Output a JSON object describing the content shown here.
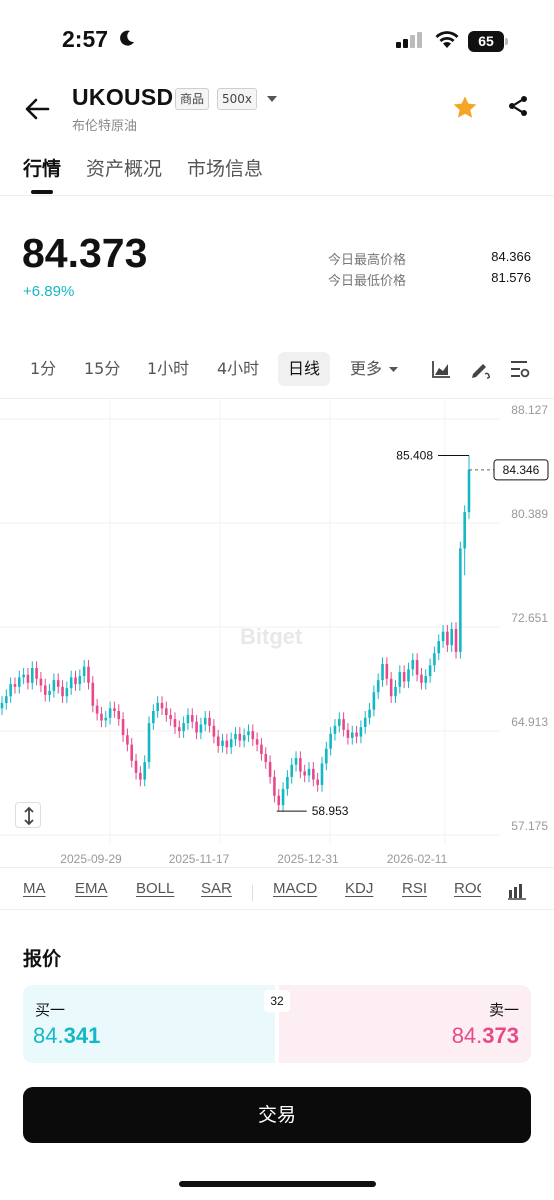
{
  "status_bar": {
    "time": "2:57",
    "battery": "65"
  },
  "header": {
    "symbol": "UKOUSD",
    "tags": [
      "商品",
      "500x"
    ],
    "subtitle": "布伦特原油"
  },
  "tabs": [
    {
      "label": "行情",
      "active": true
    },
    {
      "label": "资产概况",
      "active": false
    },
    {
      "label": "市场信息",
      "active": false
    }
  ],
  "price": {
    "last": "84.373",
    "change": "+6.89%",
    "high_label": "今日最高价格",
    "high_value": "84.366",
    "low_label": "今日最低价格",
    "low_value": "81.576"
  },
  "intervals": [
    {
      "label": "1分",
      "active": false
    },
    {
      "label": "15分",
      "active": false
    },
    {
      "label": "1小时",
      "active": false
    },
    {
      "label": "4小时",
      "active": false
    },
    {
      "label": "日线",
      "active": true
    },
    {
      "label": "更多",
      "active": false
    }
  ],
  "chart_data": {
    "type": "candlestick",
    "y_ticks": [
      "88.127",
      "80.389",
      "72.651",
      "64.913",
      "57.175"
    ],
    "ylim": [
      57.175,
      88.127
    ],
    "x_ticks": [
      "2025-09-29",
      "2025-11-17",
      "2025-12-31",
      "2026-02-11"
    ],
    "current_price_label": "84.346",
    "max_label": "85.408",
    "min_label": "58.953",
    "watermark": "Bitget",
    "colors": {
      "up": "#14b8c4",
      "down": "#e64a8a"
    },
    "series_close": [
      67.0,
      67.5,
      68.4,
      68.2,
      68.9,
      69.1,
      68.5,
      69.6,
      68.8,
      68.3,
      67.6,
      67.9,
      68.7,
      68.2,
      67.5,
      68.1,
      68.9,
      68.4,
      69.0,
      69.7,
      68.5,
      66.8,
      66.2,
      65.7,
      65.9,
      66.6,
      66.4,
      65.8,
      64.6,
      63.9,
      62.7,
      61.8,
      61.3,
      62.6,
      65.5,
      66.4,
      67.0,
      66.6,
      66.1,
      65.8,
      65.2,
      64.9,
      65.5,
      66.1,
      65.6,
      64.8,
      65.4,
      65.9,
      65.3,
      64.5,
      63.8,
      64.2,
      63.7,
      64.3,
      64.7,
      64.2,
      64.6,
      64.9,
      64.3,
      63.9,
      63.2,
      62.6,
      61.5,
      60.1,
      59.4,
      60.6,
      61.5,
      62.4,
      62.9,
      61.9,
      61.6,
      62.1,
      61.3,
      60.9,
      62.5,
      63.6,
      64.7,
      65.3,
      65.8,
      65.0,
      64.4,
      64.8,
      64.5,
      65.2,
      65.9,
      66.5,
      67.8,
      68.7,
      69.9,
      68.8,
      67.5,
      68.2,
      69.3,
      68.6,
      69.5,
      70.2,
      69.1,
      68.5,
      69.0,
      69.8,
      70.7,
      71.6,
      72.3,
      71.3,
      72.5,
      70.8,
      78.5,
      81.2,
      84.346
    ]
  },
  "indicators": {
    "main": [
      "MA",
      "EMA",
      "BOLL",
      "SAR"
    ],
    "sub": [
      "MACD",
      "KDJ",
      "RSI",
      "ROC"
    ]
  },
  "quote": {
    "title": "报价",
    "bid_label": "买一",
    "bid_prefix": "84.",
    "bid_bold": "341",
    "ask_label": "卖一",
    "ask_prefix": "84.",
    "ask_bold": "373",
    "spread": "32"
  },
  "trade_button": "交易"
}
